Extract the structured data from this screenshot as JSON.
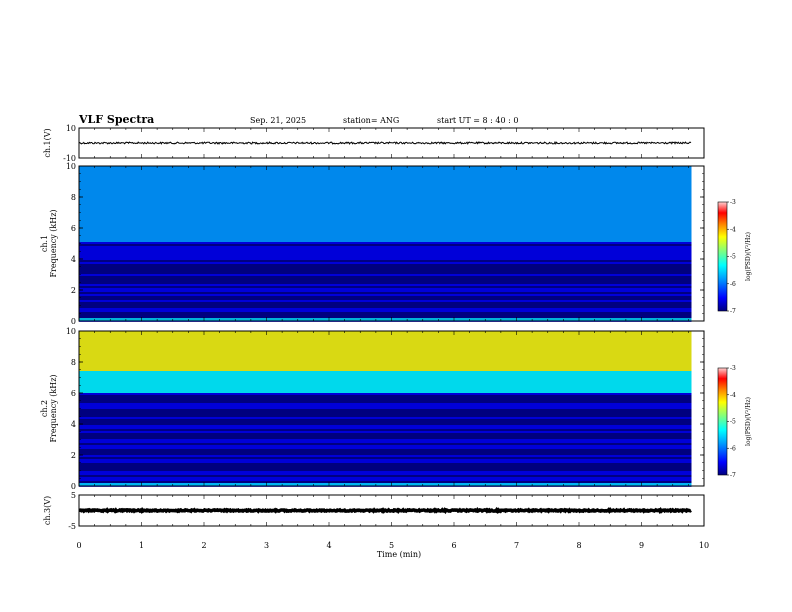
{
  "header": {
    "title": "VLF Spectra",
    "date": "Sep. 21, 2025",
    "station": "station= ANG",
    "start": "start UT =  8 : 40 : 0"
  },
  "chart_data": [
    {
      "type": "line",
      "panel": "ch1-waveform",
      "ylabel": "ch.1(V)",
      "ylim": [
        -10,
        10
      ],
      "yticks": [
        "10",
        "-10"
      ],
      "xlim": [
        0,
        10
      ],
      "signal_level": 0,
      "signal_amplitude": 0.6
    },
    {
      "type": "heatmap",
      "panel": "ch1-spectrogram",
      "ylabel": "ch.1\nFrequency (kHz)",
      "ylim": [
        0,
        10
      ],
      "yticks": [
        "0",
        "2",
        "4",
        "6",
        "8",
        "10"
      ],
      "xlim": [
        0,
        10
      ],
      "data_end_min": 9.8,
      "colorbar": {
        "label": "log(PSD)(V²/Hz)",
        "range": [
          -7,
          -3
        ],
        "ticks": [
          "-3",
          "-4",
          "-5",
          "-6",
          "-7"
        ]
      },
      "tone_lines_khz": [
        0.3,
        0.8,
        1.0,
        1.3,
        1.6,
        2.0,
        2.4,
        2.7,
        3.0,
        3.3,
        3.7,
        4.0,
        4.5,
        4.8,
        5.0
      ],
      "noise_ceiling_khz": 5.2
    },
    {
      "type": "heatmap",
      "panel": "ch2-spectrogram",
      "ylabel": "ch.2\nFrequency (kHz)",
      "ylim": [
        0,
        10
      ],
      "yticks": [
        "0",
        "2",
        "4",
        "6",
        "8",
        "10"
      ],
      "xlim": [
        0,
        10
      ],
      "data_end_min": 9.8,
      "colorbar": {
        "label": "log(PSD)(V²/Hz)",
        "range": [
          -7,
          -3
        ],
        "ticks": [
          "-3",
          "-4",
          "-5",
          "-6",
          "-7"
        ]
      },
      "tone_lines_khz": [
        0.3,
        0.9,
        1.2,
        1.5,
        1.9,
        2.3,
        2.7,
        3.0,
        3.4,
        3.8,
        4.1,
        4.4
      ],
      "noise_ceiling_khz": 6.0
    },
    {
      "type": "line",
      "panel": "ch3-waveform",
      "ylabel": "ch.3(V)",
      "ylim": [
        -5,
        5
      ],
      "yticks": [
        "5",
        "-5"
      ],
      "xlim": [
        0,
        10
      ],
      "signal_level": 0,
      "signal_amplitude": 0.2
    }
  ],
  "x_axis": {
    "label": "Time (min)",
    "ticks": [
      "0",
      "1",
      "2",
      "3",
      "4",
      "5",
      "6",
      "7",
      "8",
      "9",
      "10"
    ]
  },
  "colors": {
    "colormap": [
      "#00007f",
      "#0000ff",
      "#00a0ff",
      "#00ffff",
      "#7fff7f",
      "#ffff00",
      "#ff7f00",
      "#ff0000",
      "#ffd0d0"
    ],
    "waveform": "#000000"
  }
}
